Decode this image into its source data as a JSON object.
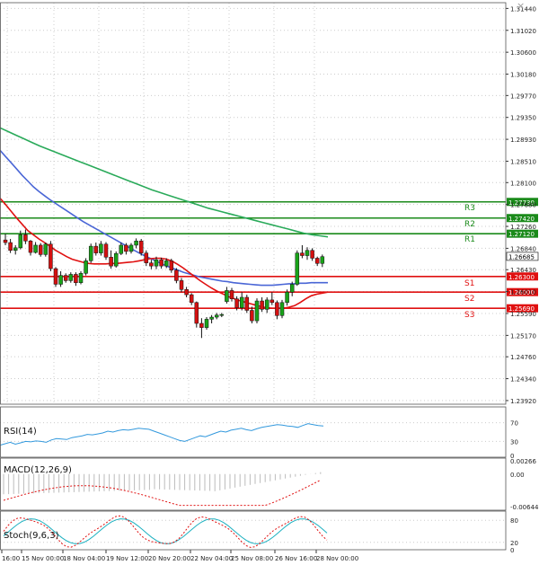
{
  "window": {
    "close_glyph": "×"
  },
  "price_axis": {
    "ticks": [
      "1.31440",
      "1.31020",
      "1.30600",
      "1.30180",
      "1.29770",
      "1.29350",
      "1.28930",
      "1.28510",
      "1.28100",
      "1.27680",
      "1.27260",
      "1.26840",
      "1.26430",
      "1.26010",
      "1.25590",
      "1.25170",
      "1.24760",
      "1.24340",
      "1.23920"
    ],
    "current_price": "1.26685"
  },
  "time_axis": {
    "labels": [
      "16:00",
      "15 Nov 00:00",
      "18 Nov 04:00",
      "19 Nov 12:00",
      "20 Nov 20:00",
      "22 Nov 04:00",
      "25 Nov 08:00",
      "26 Nov 16:00",
      "28 Nov 00:00"
    ]
  },
  "levels": [
    {
      "name": "R3",
      "value": 1.2773,
      "label": "1.27730",
      "color": "#1a8a1a"
    },
    {
      "name": "R2",
      "value": 1.2742,
      "label": "1.27420",
      "color": "#1a8a1a"
    },
    {
      "name": "R1",
      "value": 1.2712,
      "label": "1.27120",
      "color": "#1a8a1a"
    },
    {
      "name": "S1",
      "value": 1.263,
      "label": "1.26300",
      "color": "#e01010"
    },
    {
      "name": "S2",
      "value": 1.26,
      "label": "1.26000",
      "color": "#e01010"
    },
    {
      "name": "S3",
      "value": 1.2569,
      "label": "1.25690",
      "color": "#e01010"
    }
  ],
  "colors": {
    "bull": "#19a319",
    "bear": "#d41010",
    "ma_fast": "#e01010",
    "ma_mid": "#4a66d6",
    "ma_slow": "#2aaa5a",
    "rsi": "#3399dd",
    "macd_signal": "#e01010",
    "stoch_k": "#e01010",
    "stoch_d": "#1cb0c0",
    "grid": "#cccccc"
  },
  "chart_data": [
    {
      "type": "candlestick",
      "pair": "",
      "ylim": [
        1.2385,
        1.3155
      ],
      "candles": [
        [
          1.27,
          1.2712,
          1.269,
          1.2695
        ],
        [
          1.2695,
          1.2702,
          1.2675,
          1.268
        ],
        [
          1.268,
          1.269,
          1.2672,
          1.2685
        ],
        [
          1.2685,
          1.2718,
          1.2682,
          1.271
        ],
        [
          1.271,
          1.272,
          1.2692,
          1.2698
        ],
        [
          1.2698,
          1.27,
          1.267,
          1.2676
        ],
        [
          1.2676,
          1.2696,
          1.2674,
          1.269
        ],
        [
          1.269,
          1.2694,
          1.2668,
          1.2672
        ],
        [
          1.2672,
          1.2695,
          1.2668,
          1.2692
        ],
        [
          1.2692,
          1.2698,
          1.264,
          1.2645
        ],
        [
          1.2645,
          1.2648,
          1.261,
          1.2615
        ],
        [
          1.2615,
          1.264,
          1.261,
          1.2632
        ],
        [
          1.2632,
          1.2636,
          1.2618,
          1.2622
        ],
        [
          1.2622,
          1.2638,
          1.2618,
          1.2634
        ],
        [
          1.2634,
          1.2638,
          1.2612,
          1.2618
        ],
        [
          1.2618,
          1.264,
          1.2615,
          1.2636
        ],
        [
          1.2636,
          1.2665,
          1.2632,
          1.266
        ],
        [
          1.266,
          1.2693,
          1.2656,
          1.2688
        ],
        [
          1.2688,
          1.2695,
          1.267,
          1.2675
        ],
        [
          1.2675,
          1.2698,
          1.267,
          1.2692
        ],
        [
          1.2692,
          1.2696,
          1.2662,
          1.2667
        ],
        [
          1.2667,
          1.268,
          1.2645,
          1.265
        ],
        [
          1.265,
          1.2678,
          1.2647,
          1.2674
        ],
        [
          1.2674,
          1.2695,
          1.2671,
          1.269
        ],
        [
          1.269,
          1.2694,
          1.2672,
          1.2678
        ],
        [
          1.2678,
          1.2694,
          1.2674,
          1.269
        ],
        [
          1.269,
          1.2703,
          1.2684,
          1.2698
        ],
        [
          1.2698,
          1.2702,
          1.267,
          1.2675
        ],
        [
          1.2675,
          1.268,
          1.265,
          1.2656
        ],
        [
          1.2656,
          1.2662,
          1.2644,
          1.265
        ],
        [
          1.265,
          1.2668,
          1.2644,
          1.2662
        ],
        [
          1.2662,
          1.2666,
          1.2645,
          1.265
        ],
        [
          1.265,
          1.2665,
          1.2646,
          1.266
        ],
        [
          1.266,
          1.2664,
          1.2637,
          1.2642
        ],
        [
          1.2642,
          1.2646,
          1.2617,
          1.2622
        ],
        [
          1.2622,
          1.2627,
          1.26,
          1.2605
        ],
        [
          1.2605,
          1.261,
          1.259,
          1.2595
        ],
        [
          1.2595,
          1.2598,
          1.2575,
          1.258
        ],
        [
          1.258,
          1.2582,
          1.2532,
          1.254
        ],
        [
          1.254,
          1.255,
          1.2512,
          1.2532
        ],
        [
          1.2532,
          1.2552,
          1.2528,
          1.2548
        ],
        [
          1.2548,
          1.2556,
          1.254,
          1.2552
        ],
        [
          1.2552,
          1.256,
          1.2548,
          1.2556
        ],
        [
          1.2556,
          1.256,
          1.2552,
          1.2557
        ],
        [
          1.2582,
          1.261,
          1.2578,
          1.2603
        ],
        [
          1.2603,
          1.2608,
          1.2582,
          1.2587
        ],
        [
          1.2587,
          1.2592,
          1.2565,
          1.257
        ],
        [
          1.257,
          1.26,
          1.2565,
          1.259
        ],
        [
          1.259,
          1.2595,
          1.256,
          1.2565
        ],
        [
          1.2565,
          1.2572,
          1.254,
          1.2545
        ],
        [
          1.2545,
          1.2588,
          1.254,
          1.2583
        ],
        [
          1.2583,
          1.259,
          1.2562,
          1.2567
        ],
        [
          1.2567,
          1.259,
          1.256,
          1.2585
        ],
        [
          1.2585,
          1.26,
          1.2575,
          1.258
        ],
        [
          1.258,
          1.2584,
          1.2548,
          1.2555
        ],
        [
          1.2555,
          1.2585,
          1.255,
          1.258
        ],
        [
          1.258,
          1.2605,
          1.2574,
          1.26
        ],
        [
          1.26,
          1.262,
          1.2592,
          1.2615
        ],
        [
          1.2615,
          1.268,
          1.2612,
          1.2675
        ],
        [
          1.2675,
          1.269,
          1.2665,
          1.267
        ],
        [
          1.267,
          1.2686,
          1.2662,
          1.268
        ],
        [
          1.268,
          1.2684,
          1.266,
          1.2665
        ],
        [
          1.2665,
          1.2668,
          1.265,
          1.2655
        ],
        [
          1.2655,
          1.2672,
          1.2648,
          1.2668
        ]
      ],
      "ma_fast": [
        1.278,
        1.2768,
        1.2755,
        1.2742,
        1.273,
        1.2718,
        1.271,
        1.2702,
        1.2695,
        1.2688,
        1.268,
        1.2674,
        1.2668,
        1.2663,
        1.266,
        1.2657,
        1.2655,
        1.2654,
        1.2654,
        1.2654,
        1.2655,
        1.2655,
        1.2656,
        1.2657,
        1.2658,
        1.266,
        1.2662,
        1.2664,
        1.2665,
        1.2665,
        1.2663,
        1.2659,
        1.2653,
        1.2646,
        1.2638,
        1.263,
        1.2622,
        1.2615,
        1.2608,
        1.2602,
        1.2597,
        1.2592,
        1.2588,
        1.2584,
        1.2581,
        1.2578,
        1.2575,
        1.2572,
        1.257,
        1.2569,
        1.2569,
        1.2569,
        1.2571,
        1.2574,
        1.258,
        1.2587,
        1.2593,
        1.2596,
        1.2598,
        1.26
      ],
      "ma_mid": [
        1.2872,
        1.286,
        1.2848,
        1.2836,
        1.2824,
        1.2813,
        1.2802,
        1.2793,
        1.2785,
        1.2777,
        1.277,
        1.2763,
        1.2756,
        1.2749,
        1.2742,
        1.2735,
        1.2729,
        1.2723,
        1.2717,
        1.2711,
        1.2705,
        1.2699,
        1.2693,
        1.2687,
        1.2681,
        1.2675,
        1.267,
        1.2665,
        1.266,
        1.2655,
        1.265,
        1.2646,
        1.2642,
        1.2638,
        1.2635,
        1.2632,
        1.2629,
        1.2627,
        1.2625,
        1.2623,
        1.2621,
        1.262,
        1.2618,
        1.2617,
        1.2616,
        1.2615,
        1.2614,
        1.2613,
        1.2613,
        1.2613,
        1.2614,
        1.2615,
        1.2616,
        1.2616,
        1.2617,
        1.2617,
        1.2618,
        1.2618,
        1.2618,
        1.2618
      ],
      "ma_slow": [
        1.2915,
        1.2908,
        1.2901,
        1.2894,
        1.2887,
        1.288,
        1.2874,
        1.2868,
        1.2862,
        1.2856,
        1.285,
        1.2844,
        1.2838,
        1.2832,
        1.2826,
        1.282,
        1.2814,
        1.2808,
        1.2802,
        1.2796,
        1.2791,
        1.2786,
        1.2781,
        1.2776,
        1.2771,
        1.2766,
        1.2761,
        1.2757,
        1.2753,
        1.2749,
        1.2745,
        1.2741,
        1.2737,
        1.2733,
        1.2729,
        1.2725,
        1.2721,
        1.2717,
        1.2713,
        1.271,
        1.2708,
        1.2706
      ],
      "ma_slow_x_end": 1.2708
    },
    {
      "type": "line",
      "title": "RSI(14)",
      "ticks": [
        "70",
        "30",
        "0"
      ],
      "ylim": [
        0,
        100
      ],
      "values": [
        22,
        25,
        28,
        24,
        27,
        30,
        29,
        31,
        30,
        28,
        33,
        36,
        35,
        34,
        38,
        40,
        42,
        45,
        44,
        46,
        48,
        52,
        50,
        53,
        55,
        54,
        56,
        58,
        57,
        56,
        52,
        48,
        44,
        40,
        36,
        32,
        30,
        34,
        38,
        42,
        40,
        44,
        48,
        52,
        50,
        54,
        56,
        58,
        55,
        53,
        57,
        60,
        62,
        64,
        66,
        65,
        63,
        62,
        60,
        64,
        68,
        66,
        64,
        63
      ]
    },
    {
      "type": "bar",
      "title": "MACD(12,26,9)",
      "ticks": [
        "0.00266",
        "0.00",
        "-0.00644"
      ],
      "ylim": [
        -0.0068,
        0.0028
      ]
    },
    {
      "type": "line",
      "title": "Stoch(9,6,3)",
      "ticks": [
        "80",
        "20",
        "0"
      ],
      "ylim": [
        0,
        100
      ]
    }
  ]
}
